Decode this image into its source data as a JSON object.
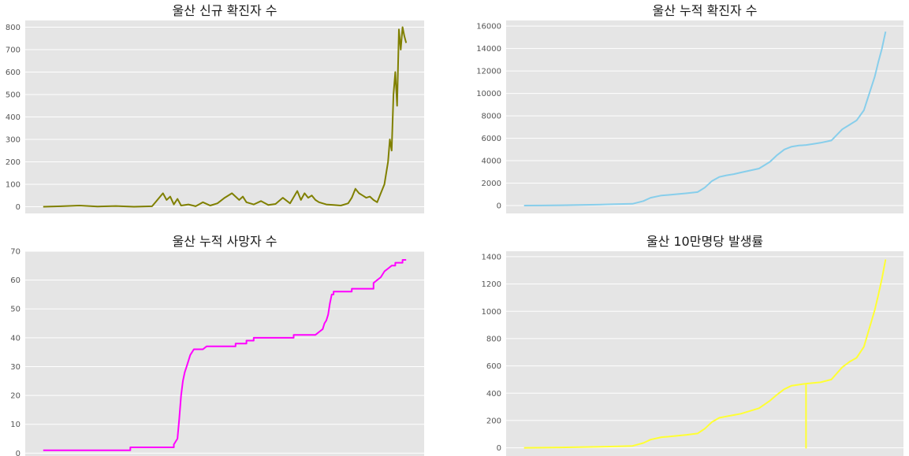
{
  "chart_data": [
    {
      "type": "line",
      "title": "울산 신규 확진자 수",
      "color": "#808000",
      "ylim": [
        -30,
        830
      ],
      "yticks": [
        0,
        100,
        200,
        300,
        400,
        500,
        600,
        700,
        800
      ],
      "grid": true,
      "series": [
        {
          "x": [
            0,
            0.05,
            0.1,
            0.15,
            0.2,
            0.25,
            0.3,
            0.33,
            0.34,
            0.35,
            0.36,
            0.37,
            0.38,
            0.4,
            0.42,
            0.44,
            0.46,
            0.48,
            0.5,
            0.52,
            0.54,
            0.55,
            0.56,
            0.57,
            0.58,
            0.6,
            0.62,
            0.64,
            0.66,
            0.68,
            0.7,
            0.71,
            0.72,
            0.73,
            0.74,
            0.75,
            0.76,
            0.78,
            0.8,
            0.82,
            0.84,
            0.85,
            0.86,
            0.87,
            0.88,
            0.89,
            0.9,
            0.91,
            0.92,
            0.93,
            0.94,
            0.945,
            0.95,
            0.955,
            0.96,
            0.965,
            0.97,
            0.975,
            0.98,
            0.985,
            0.99,
            0.995,
            1.0
          ],
          "y": [
            0,
            2,
            5,
            1,
            3,
            0,
            2,
            60,
            30,
            45,
            10,
            35,
            5,
            10,
            2,
            20,
            5,
            15,
            40,
            60,
            30,
            45,
            20,
            15,
            10,
            25,
            8,
            12,
            40,
            15,
            70,
            30,
            60,
            40,
            50,
            30,
            20,
            10,
            8,
            5,
            15,
            40,
            80,
            60,
            50,
            40,
            45,
            30,
            20,
            60,
            100,
            150,
            200,
            300,
            250,
            500,
            600,
            450,
            790,
            700,
            800,
            760,
            730
          ]
        }
      ]
    },
    {
      "type": "line",
      "title": "울산 누적 확진자 수",
      "color": "#87ceeb",
      "ylim": [
        -700,
        16500
      ],
      "yticks": [
        0,
        2000,
        4000,
        6000,
        8000,
        10000,
        12000,
        14000,
        16000
      ],
      "grid": true,
      "series": [
        {
          "x": [
            0,
            0.05,
            0.1,
            0.15,
            0.2,
            0.25,
            0.3,
            0.33,
            0.35,
            0.38,
            0.4,
            0.45,
            0.48,
            0.5,
            0.52,
            0.54,
            0.56,
            0.58,
            0.6,
            0.65,
            0.68,
            0.7,
            0.72,
            0.74,
            0.76,
            0.78,
            0.8,
            0.82,
            0.85,
            0.88,
            0.9,
            0.92,
            0.94,
            0.95,
            0.96,
            0.97,
            0.98,
            0.99,
            1.0
          ],
          "y": [
            0,
            10,
            30,
            50,
            80,
            120,
            160,
            400,
            700,
            900,
            950,
            1100,
            1200,
            1600,
            2200,
            2550,
            2700,
            2800,
            2950,
            3300,
            3900,
            4500,
            5000,
            5250,
            5350,
            5400,
            5500,
            5600,
            5800,
            6800,
            7200,
            7600,
            8500,
            9500,
            10500,
            11500,
            12800,
            14000,
            15500
          ]
        }
      ]
    },
    {
      "type": "line",
      "title": "울산 누적 사망자 수",
      "color": "#ff00ff",
      "ylim": [
        -1,
        70
      ],
      "yticks": [
        0,
        10,
        20,
        30,
        40,
        50,
        60,
        70
      ],
      "grid": true,
      "series": [
        {
          "x": [
            0,
            0.24,
            0.24,
            0.36,
            0.36,
            0.37,
            0.375,
            0.38,
            0.385,
            0.39,
            0.395,
            0.4,
            0.405,
            0.41,
            0.415,
            0.42,
            0.43,
            0.44,
            0.45,
            0.47,
            0.47,
            0.53,
            0.53,
            0.56,
            0.56,
            0.58,
            0.58,
            0.69,
            0.69,
            0.75,
            0.76,
            0.77,
            0.775,
            0.78,
            0.785,
            0.79,
            0.795,
            0.8,
            0.8,
            0.85,
            0.85,
            0.91,
            0.91,
            0.92,
            0.93,
            0.94,
            0.95,
            0.96,
            0.97,
            0.97,
            0.99,
            0.99,
            1.0
          ],
          "y": [
            1,
            1,
            2,
            2,
            3,
            5,
            12,
            20,
            25,
            28,
            30,
            32,
            34,
            35,
            36,
            36,
            36,
            36,
            37,
            37,
            37,
            37,
            38,
            38,
            39,
            39,
            40,
            40,
            41,
            41,
            42,
            43,
            45,
            46,
            48,
            52,
            55,
            55,
            56,
            56,
            57,
            57,
            59,
            60,
            61,
            63,
            64,
            65,
            65,
            66,
            66,
            67,
            67
          ]
        }
      ]
    },
    {
      "type": "line",
      "title": "울산 10만명당 발생률",
      "color": "#ffff33",
      "ylim": [
        -60,
        1440
      ],
      "yticks": [
        0,
        200,
        400,
        600,
        800,
        1000,
        1200,
        1400
      ],
      "grid": true,
      "series": [
        {
          "x": [
            0,
            0.05,
            0.1,
            0.15,
            0.2,
            0.25,
            0.3,
            0.33,
            0.35,
            0.38,
            0.4,
            0.45,
            0.48,
            0.5,
            0.52,
            0.54,
            0.56,
            0.58,
            0.6,
            0.65,
            0.68,
            0.7,
            0.72,
            0.74,
            0.78,
            0.78,
            0.78,
            0.78,
            0.8,
            0.82,
            0.85,
            0.88,
            0.9,
            0.92,
            0.94,
            0.95,
            0.96,
            0.97,
            0.98,
            0.99,
            1.0
          ],
          "y": [
            0,
            1,
            3,
            5,
            7,
            10,
            14,
            35,
            60,
            78,
            82,
            95,
            105,
            140,
            190,
            220,
            230,
            240,
            250,
            290,
            345,
            390,
            430,
            455,
            470,
            0,
            0,
            470,
            475,
            480,
            500,
            590,
            630,
            660,
            740,
            830,
            920,
            1010,
            1120,
            1240,
            1380
          ]
        }
      ]
    }
  ]
}
